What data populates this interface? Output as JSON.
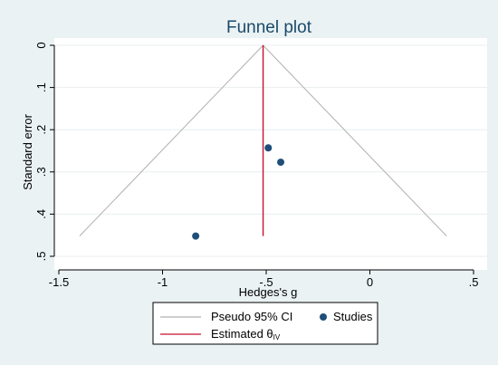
{
  "chart_data": {
    "type": "scatter",
    "title": "Funnel plot",
    "xlabel": "Hedges's g",
    "ylabel": "Standard error",
    "xlim": [
      -1.5,
      0.5
    ],
    "ylim": [
      0,
      0.5
    ],
    "y_reversed": true,
    "x_ticks": [
      -1.5,
      -1,
      -0.5,
      0,
      0.5
    ],
    "x_tick_labels": [
      "-1.5",
      "-1",
      "-.5",
      "0",
      ".5"
    ],
    "y_ticks": [
      0,
      0.1,
      0.2,
      0.3,
      0.4,
      0.5
    ],
    "y_tick_labels": [
      "0",
      ".1",
      ".2",
      ".3",
      ".4",
      ".5"
    ],
    "grid": true,
    "legend_position": "bottom",
    "series": [
      {
        "name": "Studies",
        "type": "scatter",
        "color": "#1f4e79",
        "points": [
          {
            "x": -0.49,
            "y": 0.243
          },
          {
            "x": -0.43,
            "y": 0.277
          },
          {
            "x": -0.84,
            "y": 0.452
          }
        ]
      },
      {
        "name": "Pseudo 95% CI",
        "type": "line",
        "color": "#b0b0b0",
        "points": [
          {
            "x": -1.4,
            "y": 0.452
          },
          {
            "x": -0.515,
            "y": 0
          },
          {
            "x": 0.37,
            "y": 0.452
          }
        ]
      },
      {
        "name": "Estimated θIV",
        "type": "line",
        "color": "#c8102e",
        "points": [
          {
            "x": -0.515,
            "y": 0
          },
          {
            "x": -0.515,
            "y": 0.452
          }
        ]
      }
    ],
    "legend": [
      {
        "label": "Pseudo 95% CI",
        "kind": "line",
        "color": "#b0b0b0"
      },
      {
        "label": "Studies",
        "kind": "marker",
        "color": "#1f4e79"
      },
      {
        "label": "Estimated θ",
        "subscript": "IV",
        "kind": "line",
        "color": "#c8102e"
      }
    ]
  }
}
